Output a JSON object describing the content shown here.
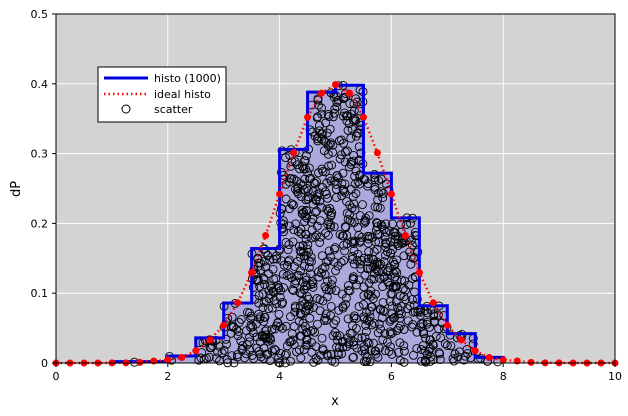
{
  "chart_data": {
    "type": "line",
    "xlabel": "x",
    "ylabel": "dP",
    "xlim": [
      0,
      10
    ],
    "ylim": [
      0,
      0.5
    ],
    "x_ticks": [
      "0",
      "2",
      "4",
      "6",
      "8",
      "10"
    ],
    "y_ticks": [
      "0",
      "0.1",
      "0.2",
      "0.3",
      "0.4",
      "0.5"
    ],
    "grid": true,
    "legend_position": "top-left",
    "colors": {
      "plot_background": "#d3d3d3",
      "histogram_fill": "#aaaadd",
      "histogram_line": "#0000dd",
      "ideal": "#ff0000",
      "scatter": "#000000"
    },
    "legend": [
      "histo (1000)",
      "ideal histo",
      "scatter"
    ],
    "series": [
      {
        "name": "histo (1000)",
        "kind": "step",
        "bin_edges": [
          1.0,
          1.5,
          2.0,
          2.5,
          3.0,
          3.5,
          4.0,
          4.5,
          5.0,
          5.5,
          6.0,
          6.5,
          7.0,
          7.5,
          8.0
        ],
        "values": [
          0.002,
          0.002,
          0.01,
          0.036,
          0.086,
          0.164,
          0.306,
          0.388,
          0.398,
          0.272,
          0.208,
          0.082,
          0.042,
          0.008
        ]
      },
      {
        "name": "ideal histo",
        "kind": "dotted-line-with-markers",
        "x": [
          0.0,
          0.25,
          0.5,
          0.75,
          1.0,
          1.25,
          1.5,
          1.75,
          2.0,
          2.25,
          2.5,
          2.75,
          3.0,
          3.25,
          3.5,
          3.75,
          4.0,
          4.25,
          4.5,
          4.75,
          5.0,
          5.25,
          5.5,
          5.75,
          6.0,
          6.25,
          6.5,
          6.75,
          7.0,
          7.25,
          7.5,
          7.75,
          8.0,
          8.25,
          8.5,
          8.75,
          9.0,
          9.25,
          9.5,
          9.75,
          10.0
        ],
        "y": [
          0.0,
          0.0,
          0.0,
          0.0,
          0.0001,
          0.0002,
          0.0009,
          0.0029,
          0.0044,
          0.0079,
          0.0175,
          0.033,
          0.054,
          0.0863,
          0.1295,
          0.1826,
          0.242,
          0.3011,
          0.3521,
          0.3867,
          0.3989,
          0.3867,
          0.3521,
          0.3011,
          0.242,
          0.1826,
          0.1295,
          0.0863,
          0.054,
          0.033,
          0.0175,
          0.0079,
          0.0044,
          0.0029,
          0.0009,
          0.0002,
          0.0001,
          0.0,
          0.0,
          0.0,
          0.0
        ]
      },
      {
        "name": "scatter",
        "kind": "scatter",
        "count": 1000,
        "seed": 7
      }
    ]
  }
}
